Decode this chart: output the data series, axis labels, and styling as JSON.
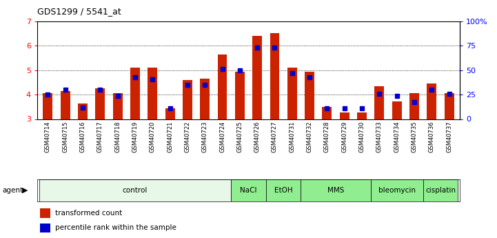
{
  "title": "GDS1299 / 5541_at",
  "samples": [
    "GSM40714",
    "GSM40715",
    "GSM40716",
    "GSM40717",
    "GSM40718",
    "GSM40719",
    "GSM40720",
    "GSM40721",
    "GSM40722",
    "GSM40723",
    "GSM40724",
    "GSM40725",
    "GSM40726",
    "GSM40727",
    "GSM40731",
    "GSM40732",
    "GSM40728",
    "GSM40729",
    "GSM40730",
    "GSM40733",
    "GSM40734",
    "GSM40735",
    "GSM40736",
    "GSM40737"
  ],
  "red_values": [
    4.05,
    4.15,
    3.65,
    4.25,
    4.05,
    5.1,
    5.1,
    3.45,
    4.6,
    4.65,
    5.65,
    4.95,
    6.42,
    6.52,
    5.1,
    4.95,
    3.5,
    3.28,
    3.28,
    4.35,
    3.72,
    4.05,
    4.45,
    4.05
  ],
  "blue_percentiles": [
    25,
    30,
    12,
    30,
    24,
    43,
    41,
    11,
    35,
    35,
    51,
    50,
    73,
    73,
    47,
    43,
    11,
    11,
    11,
    26,
    24,
    17,
    30,
    26
  ],
  "groups": [
    {
      "label": "control",
      "start": 0,
      "end": 11,
      "color": "#e8f8e8"
    },
    {
      "label": "NaCl",
      "start": 11,
      "end": 13,
      "color": "#90ee90"
    },
    {
      "label": "EtOH",
      "start": 13,
      "end": 15,
      "color": "#90ee90"
    },
    {
      "label": "MMS",
      "start": 15,
      "end": 19,
      "color": "#90ee90"
    },
    {
      "label": "bleomycin",
      "start": 19,
      "end": 22,
      "color": "#90ee90"
    },
    {
      "label": "cisplatin",
      "start": 22,
      "end": 24,
      "color": "#90ee90"
    }
  ],
  "ylim_left": [
    3,
    7
  ],
  "ylim_right": [
    0,
    100
  ],
  "yticks_left": [
    3,
    4,
    5,
    6,
    7
  ],
  "ytick_labels_left": [
    "3",
    "4",
    "5",
    "6",
    "7"
  ],
  "yticks_right": [
    0,
    25,
    50,
    75,
    100
  ],
  "ytick_labels_right": [
    "0",
    "25",
    "50",
    "75",
    "100%"
  ],
  "bar_color": "#cc2200",
  "dot_color": "#0000cc",
  "bg_color": "#ffffff",
  "legend": [
    {
      "label": "transformed count",
      "color": "#cc2200"
    },
    {
      "label": "percentile rank within the sample",
      "color": "#0000cc"
    }
  ]
}
